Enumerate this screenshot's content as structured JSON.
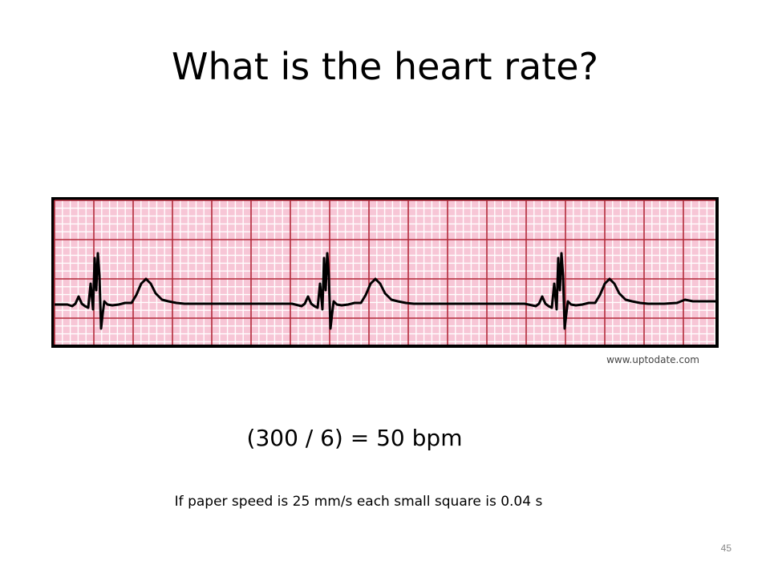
{
  "slide": {
    "title": "What is the heart rate?",
    "source": "www.uptodate.com",
    "formula": "(300 / 6) = 50 bpm",
    "note": "If paper speed is 25 mm/s each small square is 0.04 s",
    "page_number": "45"
  },
  "ecg": {
    "paper_color": "#f7c6d6",
    "minor_grid_color": "#ffffff",
    "major_grid_color": "#b22a3a",
    "trace_color": "#000000"
  }
}
